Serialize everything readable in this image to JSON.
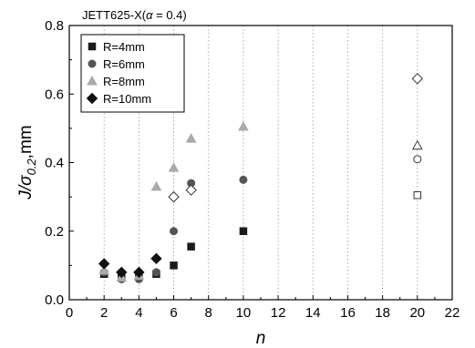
{
  "chart_data": {
    "type": "scatter",
    "title": "JETT625-X(",
    "title_alpha": "α",
    "title_tail": " = 0.4)",
    "ylabel_main": "J/σ",
    "ylabel_sub": "0.2",
    "ylabel_unit": ",mm",
    "xlabel": "n",
    "xlim": [
      0,
      22
    ],
    "ylim": [
      0,
      0.8
    ],
    "x_ticks": [
      "0",
      "2",
      "4",
      "6",
      "8",
      "10",
      "12",
      "14",
      "16",
      "18",
      "20",
      "22"
    ],
    "y_ticks": [
      "0.0",
      "0.2",
      "0.4",
      "0.6",
      "0.8"
    ],
    "grid": "vertical dotted",
    "legend_position": "top-left",
    "series": [
      {
        "name": "R=4mm",
        "marker": "square",
        "color": "#1a1a1a",
        "points": [
          {
            "x": 2,
            "y": 0.075,
            "filled": true
          },
          {
            "x": 3,
            "y": 0.07,
            "filled": true
          },
          {
            "x": 4,
            "y": 0.07,
            "filled": true
          },
          {
            "x": 5,
            "y": 0.075,
            "filled": true
          },
          {
            "x": 6,
            "y": 0.1,
            "filled": true
          },
          {
            "x": 7,
            "y": 0.155,
            "filled": true
          },
          {
            "x": 10,
            "y": 0.2,
            "filled": true
          },
          {
            "x": 20,
            "y": 0.305,
            "filled": false
          }
        ]
      },
      {
        "name": "R=6mm",
        "marker": "circle",
        "color": "#555555",
        "points": [
          {
            "x": 2,
            "y": 0.08,
            "filled": true
          },
          {
            "x": 3,
            "y": 0.06,
            "filled": true
          },
          {
            "x": 4,
            "y": 0.06,
            "filled": true
          },
          {
            "x": 5,
            "y": 0.08,
            "filled": true
          },
          {
            "x": 6,
            "y": 0.2,
            "filled": true
          },
          {
            "x": 7,
            "y": 0.34,
            "filled": true
          },
          {
            "x": 10,
            "y": 0.35,
            "filled": true
          },
          {
            "x": 20,
            "y": 0.41,
            "filled": false
          }
        ]
      },
      {
        "name": "R=8mm",
        "marker": "triangle",
        "color": "#aaaaaa",
        "points": [
          {
            "x": 2,
            "y": 0.085,
            "filled": true
          },
          {
            "x": 3,
            "y": 0.065,
            "filled": true
          },
          {
            "x": 4,
            "y": 0.07,
            "filled": true
          },
          {
            "x": 5,
            "y": 0.33,
            "filled": true
          },
          {
            "x": 6,
            "y": 0.385,
            "filled": true
          },
          {
            "x": 7,
            "y": 0.47,
            "filled": true
          },
          {
            "x": 10,
            "y": 0.505,
            "filled": true
          },
          {
            "x": 20,
            "y": 0.45,
            "filled": false
          }
        ]
      },
      {
        "name": "R=10mm",
        "marker": "diamond",
        "color": "#111111",
        "points": [
          {
            "x": 2,
            "y": 0.105,
            "filled": true
          },
          {
            "x": 3,
            "y": 0.08,
            "filled": true
          },
          {
            "x": 4,
            "y": 0.08,
            "filled": true
          },
          {
            "x": 5,
            "y": 0.12,
            "filled": true
          },
          {
            "x": 6,
            "y": 0.3,
            "filled": false
          },
          {
            "x": 7,
            "y": 0.32,
            "filled": false
          },
          {
            "x": 20,
            "y": 0.645,
            "filled": false
          }
        ]
      }
    ]
  }
}
